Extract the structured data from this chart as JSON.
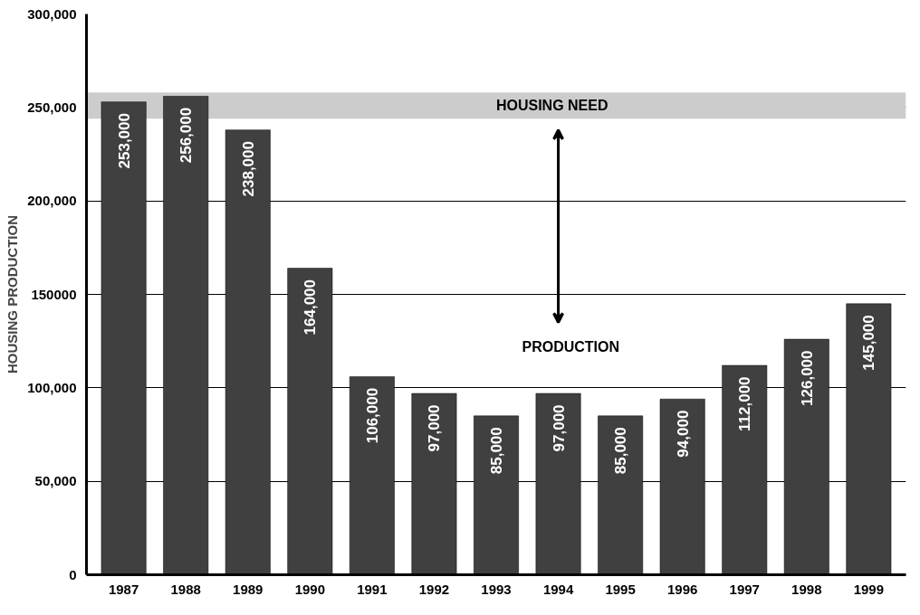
{
  "chart_data": {
    "type": "bar",
    "ylabel": "HOUSING PRODUCTION",
    "categories": [
      "1987",
      "1988",
      "1989",
      "1990",
      "1991",
      "1992",
      "1993",
      "1994",
      "1995",
      "1996",
      "1997",
      "1998",
      "1999"
    ],
    "values": [
      253000,
      256000,
      238000,
      164000,
      106000,
      97000,
      85000,
      97000,
      85000,
      94000,
      112000,
      126000,
      145000
    ],
    "color": "#404040",
    "value_labels": [
      "253,000",
      "256,000",
      "238,000",
      "164,000",
      "106,000",
      "97,000",
      "85,000",
      "97,000",
      "85,000",
      "94,000",
      "112,000",
      "126,000",
      "145,000"
    ],
    "ylim": [
      0,
      300000
    ],
    "yticks": [
      {
        "value": 0,
        "label": "0"
      },
      {
        "value": 50000,
        "label": "50,000"
      },
      {
        "value": 100000,
        "label": "100,000"
      },
      {
        "value": 150000,
        "label": "150000"
      },
      {
        "value": 200000,
        "label": "200,000"
      },
      {
        "value": 250000,
        "label": "250,000"
      },
      {
        "value": 300000,
        "label": "300,000"
      }
    ],
    "bands": [
      {
        "axis": "y",
        "from": 244000,
        "to": 258000,
        "label": "HOUSING NEED",
        "color": "#cccccc"
      }
    ],
    "annotations": [
      "PRODUCTION"
    ],
    "grid": "y"
  }
}
